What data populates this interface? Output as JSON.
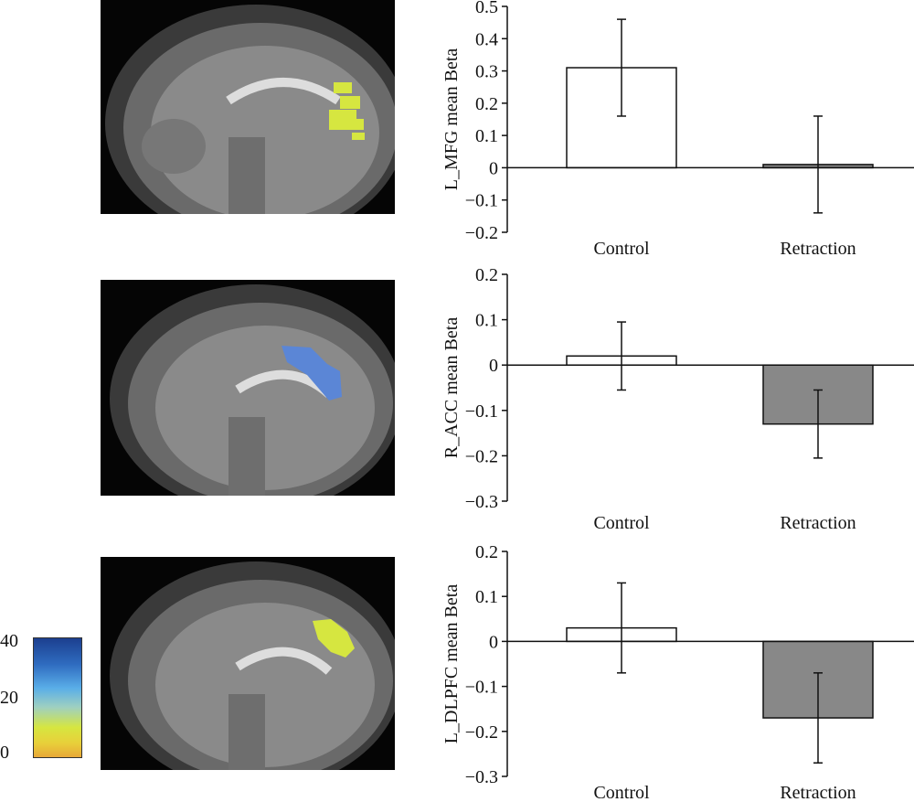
{
  "colorbar": {
    "ticks": [
      "40",
      "20",
      "0"
    ],
    "colors": [
      "#1c3f8f",
      "#5aaee8",
      "#d6e640",
      "#e8a838"
    ]
  },
  "brains": [
    {
      "region_color": "#d6e640"
    },
    {
      "region_color": "#5b86d6"
    },
    {
      "region_color": "#d6e640"
    }
  ],
  "chart_data": [
    {
      "type": "bar",
      "ylabel": "L_MFG mean Beta",
      "categories": [
        "Control",
        "Retraction"
      ],
      "values": [
        0.31,
        0.01
      ],
      "error_low": [
        0.16,
        -0.14
      ],
      "error_high": [
        0.46,
        0.16
      ],
      "bar_colors": [
        "#ffffff",
        "#888888"
      ],
      "ylim": [
        -0.2,
        0.5
      ],
      "yticks": [
        "0.5",
        "0.4",
        "0.3",
        "0.2",
        "0.1",
        "0",
        "−0.1",
        "−0.2"
      ],
      "ytick_values": [
        0.5,
        0.4,
        0.3,
        0.2,
        0.1,
        0,
        -0.1,
        -0.2
      ]
    },
    {
      "type": "bar",
      "ylabel": "R_ACC mean Beta",
      "categories": [
        "Control",
        "Retraction"
      ],
      "values": [
        0.02,
        -0.13
      ],
      "error_low": [
        -0.055,
        -0.205
      ],
      "error_high": [
        0.095,
        -0.055
      ],
      "bar_colors": [
        "#ffffff",
        "#888888"
      ],
      "ylim": [
        -0.3,
        0.2
      ],
      "yticks": [
        "0.2",
        "0.1",
        "0",
        "−0.1",
        "−0.2",
        "−0.3"
      ],
      "ytick_values": [
        0.2,
        0.1,
        0,
        -0.1,
        -0.2,
        -0.3
      ]
    },
    {
      "type": "bar",
      "ylabel": "L_DLPFC mean Beta",
      "categories": [
        "Control",
        "Retraction"
      ],
      "values": [
        0.03,
        -0.17
      ],
      "error_low": [
        -0.07,
        -0.27
      ],
      "error_high": [
        0.13,
        -0.07
      ],
      "bar_colors": [
        "#ffffff",
        "#888888"
      ],
      "ylim": [
        -0.3,
        0.2
      ],
      "yticks": [
        "0.2",
        "0.1",
        "0",
        "−0.1",
        "−0.2",
        "−0.3"
      ],
      "ytick_values": [
        0.2,
        0.1,
        0,
        -0.1,
        -0.2,
        -0.3
      ]
    }
  ]
}
